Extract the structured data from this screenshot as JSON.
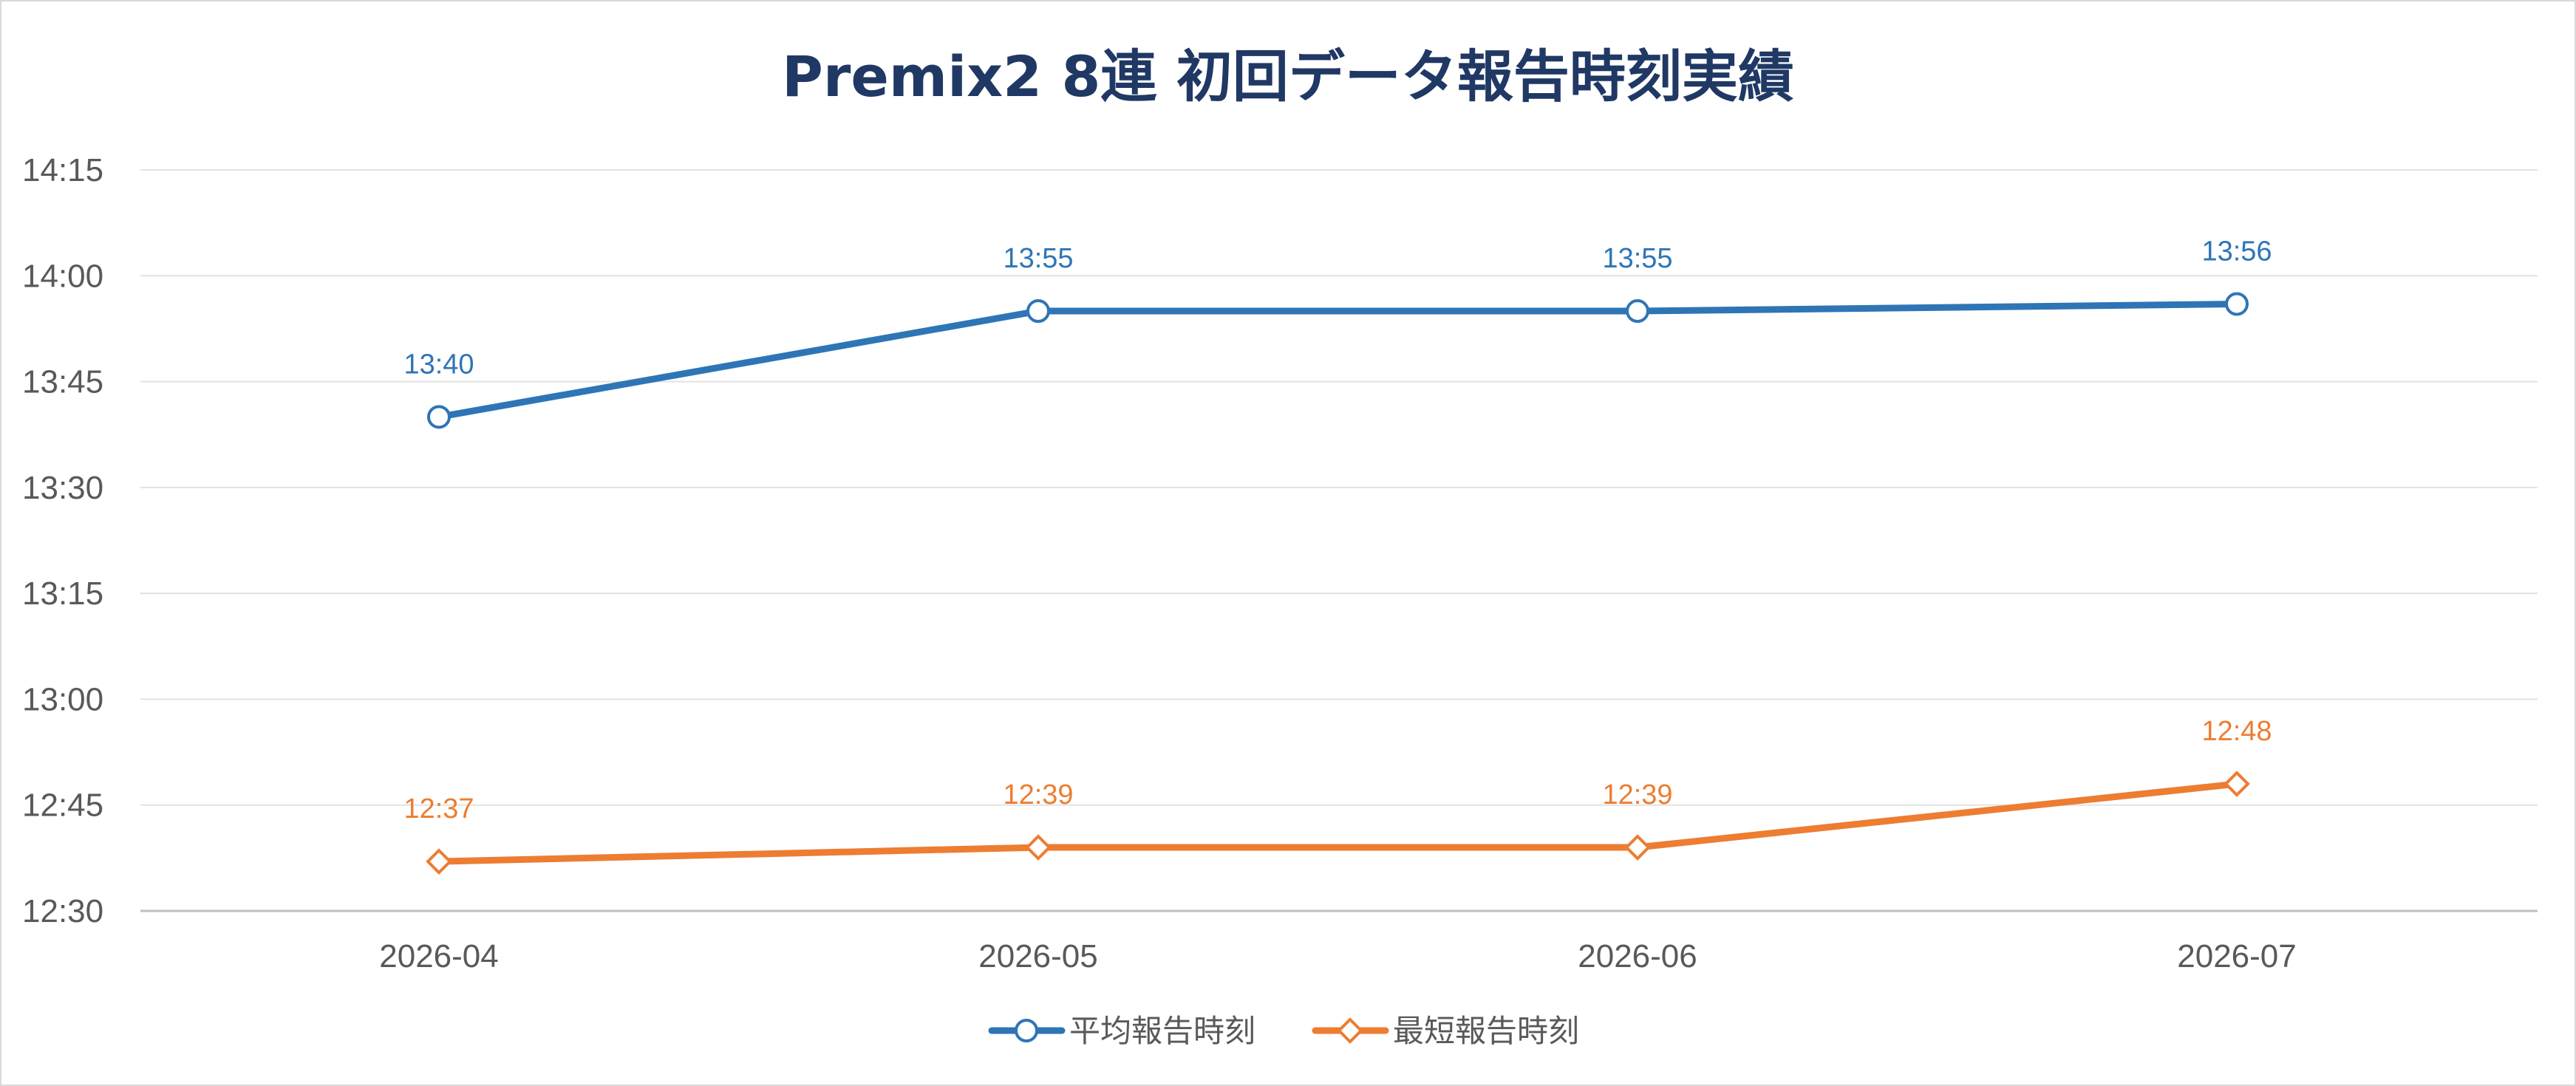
{
  "chart_data": {
    "type": "line",
    "title": "Premix2 8連 初回データ報告時刻実績",
    "title_color": "#203864",
    "categories": [
      "2026-04",
      "2026-05",
      "2026-06",
      "2026-07"
    ],
    "y_ticks": [
      "12:30",
      "12:45",
      "13:00",
      "13:15",
      "13:30",
      "13:45",
      "14:00",
      "14:15"
    ],
    "ylim": [
      "12:30",
      "14:15"
    ],
    "grid": true,
    "legend_position": "bottom",
    "series": [
      {
        "name": "平均報告時刻",
        "color": "#2e75b6",
        "marker": "circle",
        "values": [
          "13:40",
          "13:55",
          "13:55",
          "13:56"
        ]
      },
      {
        "name": "最短報告時刻",
        "color": "#ed7d31",
        "marker": "diamond",
        "values": [
          "12:37",
          "12:39",
          "12:39",
          "12:48"
        ]
      }
    ]
  }
}
